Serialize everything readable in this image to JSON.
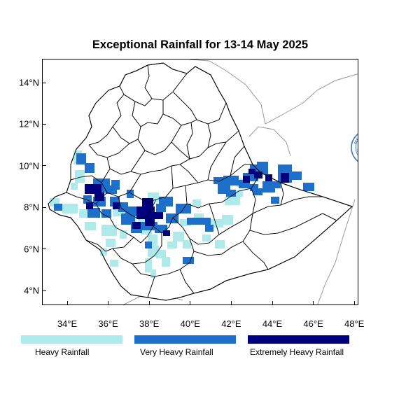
{
  "title": "Exceptional Rainfall for 13-14 May 2025",
  "lat_labels": [
    "14°N",
    "12°N",
    "10°N",
    "8°N",
    "6°N",
    "4°N"
  ],
  "lat_values": [
    14,
    12,
    10,
    8,
    6,
    4
  ],
  "lon_labels": [
    "34°E",
    "36°E",
    "38°E",
    "40°E",
    "42°E",
    "44°E",
    "46°E",
    "48°E"
  ],
  "lon_values": [
    34,
    36,
    38,
    40,
    42,
    44,
    46,
    48
  ],
  "legend": [
    {
      "label": "Heavy Rainfall",
      "color": "#aeeaea"
    },
    {
      "label": "Very Heavy Rainfall",
      "color": "#1e6fcc"
    },
    {
      "label": "Extremely Heavy Rainfall",
      "color": "#00007f"
    }
  ],
  "colors": {
    "heavy": "#aeeaea",
    "very_heavy": "#1e6fcc",
    "extremely_heavy": "#00007f",
    "boundary": "#000000",
    "neighbor_boundary": "#999999"
  },
  "logo_icon": "meteorology-institute-logo-icon"
}
